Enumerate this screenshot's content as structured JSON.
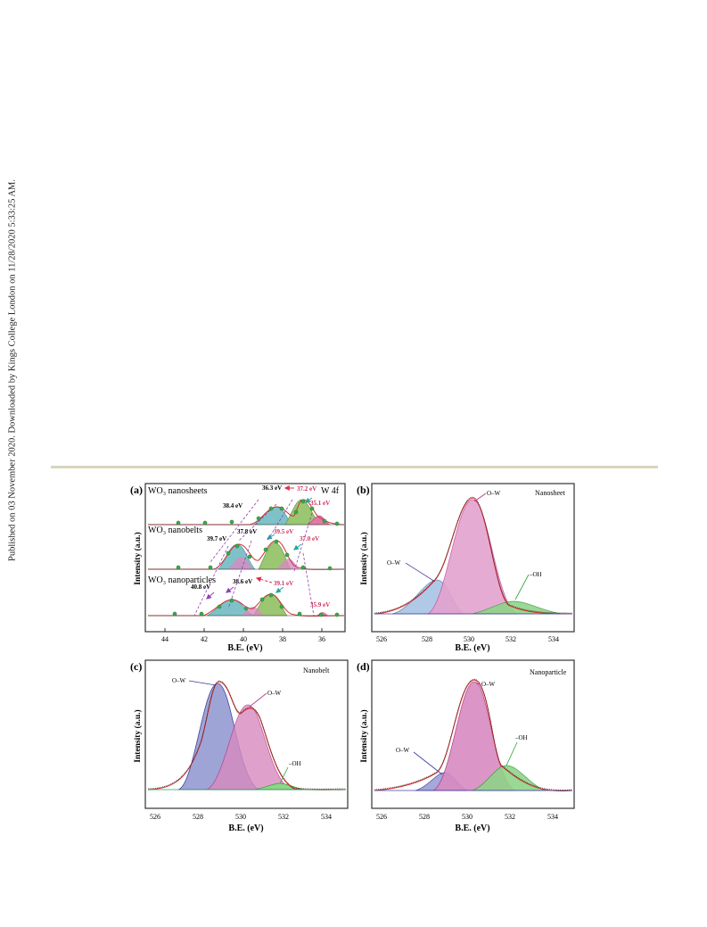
{
  "side_note": "Published on 03 November 2020. Downloaded by Kings College London on 11/28/2020 5:33:25 AM.",
  "panels": [
    {
      "id": "a",
      "letter": "(a)",
      "element": "W 4f",
      "ylabel": "Intensity (a.u.)",
      "xlabel": "B.E. (eV)",
      "xticks": [
        "44",
        "42",
        "40",
        "38",
        "36"
      ],
      "traces": [
        {
          "sub": "WO₃ nanosheets",
          "labels": [
            "38.4 eV",
            "36.3 eV",
            "37.2 eV",
            "35.1 eV"
          ]
        },
        {
          "sub": "WO₃ nanobelts",
          "labels": [
            "39.7 eV",
            "37.8 eV",
            "39.5 eV",
            "37.0 eV"
          ]
        },
        {
          "sub": "WO₃ nanoparticles",
          "labels": [
            "40.8 eV",
            "38.6 eV",
            "39.1 eV",
            "35.9 eV"
          ]
        }
      ]
    },
    {
      "id": "b",
      "letter": "(b)",
      "name": "Nanosheet",
      "ylabel": "Intensity (a.u.)",
      "xlabel": "B.E. (eV)",
      "xticks": [
        "526",
        "528",
        "530",
        "532",
        "534"
      ],
      "labels": [
        "O–W",
        "O–W",
        "–OH"
      ]
    },
    {
      "id": "c",
      "letter": "(c)",
      "name": "Nanobelt",
      "ylabel": "Intensity (a.u.)",
      "xlabel": "B.E. (eV)",
      "xticks": [
        "526",
        "528",
        "530",
        "532",
        "534"
      ],
      "labels": [
        "O–W",
        "O–W",
        "–OH"
      ]
    },
    {
      "id": "d",
      "letter": "(d)",
      "name": "Nanoparticle",
      "ylabel": "Intensity (a.u.)",
      "xlabel": "B.E. (eV)",
      "xticks": [
        "526",
        "528",
        "530",
        "532",
        "534"
      ],
      "labels": [
        "O–W",
        "O–W",
        "–OH"
      ]
    }
  ],
  "colors": {
    "rule": "#d8d6bb",
    "pink": "#d88ac0",
    "blue": "#9aa6dc",
    "lightblue": "#a8c4e4",
    "green": "#7ccf7a",
    "teal": "#7fc1c8",
    "fit": "#d03030"
  }
}
